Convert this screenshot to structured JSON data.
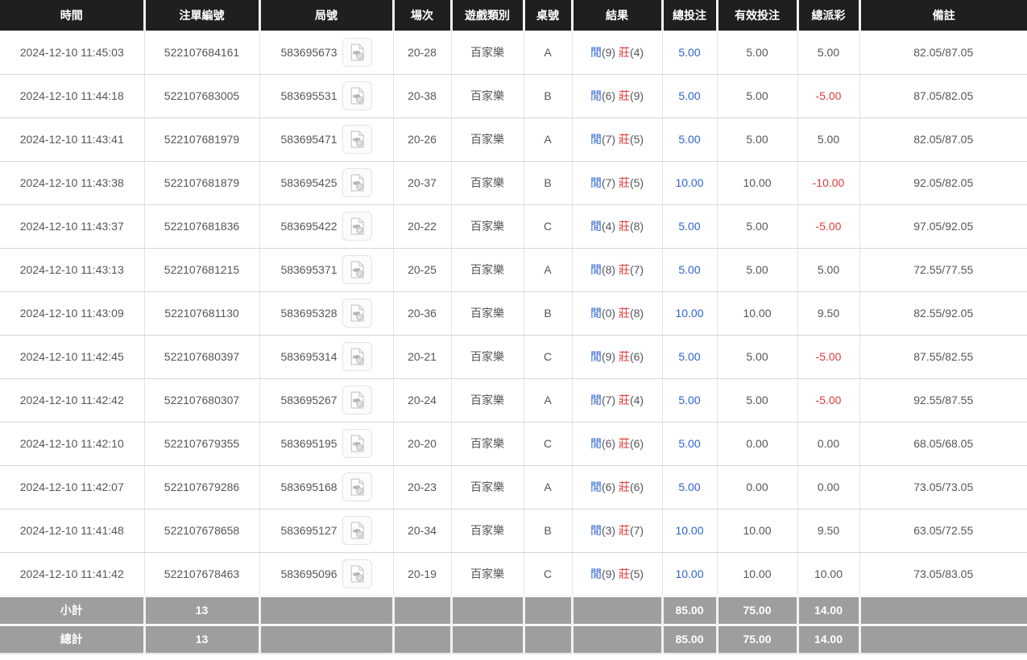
{
  "columns": [
    {
      "label": "時間"
    },
    {
      "label": "注單編號"
    },
    {
      "label": "局號"
    },
    {
      "label": "場次"
    },
    {
      "label": "遊戲類別"
    },
    {
      "label": "桌號"
    },
    {
      "label": "結果"
    },
    {
      "label": "總投注"
    },
    {
      "label": "有效投注"
    },
    {
      "label": "總派彩"
    },
    {
      "label": "備註"
    }
  ],
  "result_labels": {
    "player": "閒",
    "banker": "莊"
  },
  "icons": {
    "round_icon": "video-replay-icon"
  },
  "colors": {
    "header_bg": "#1f1f1f",
    "summary_bg": "#9e9e9e",
    "accent_blue": "#2f63cf",
    "accent_red": "#e03a3a",
    "body_text": "#54565b"
  },
  "rows": [
    {
      "time": "2024-12-10 11:45:03",
      "bet_id": "522107684161",
      "round_id": "583695673",
      "session": "20-28",
      "game_type": "百家樂",
      "table_code": "A",
      "player_score": "(9)",
      "banker_score": "(4)",
      "total_bet": "5.00",
      "valid_bet": "5.00",
      "payout": "5.00",
      "note": "82.05/87.05"
    },
    {
      "time": "2024-12-10 11:44:18",
      "bet_id": "522107683005",
      "round_id": "583695531",
      "session": "20-38",
      "game_type": "百家樂",
      "table_code": "B",
      "player_score": "(6)",
      "banker_score": "(9)",
      "total_bet": "5.00",
      "valid_bet": "5.00",
      "payout": "-5.00",
      "note": "87.05/82.05"
    },
    {
      "time": "2024-12-10 11:43:41",
      "bet_id": "522107681979",
      "round_id": "583695471",
      "session": "20-26",
      "game_type": "百家樂",
      "table_code": "A",
      "player_score": "(7)",
      "banker_score": "(5)",
      "total_bet": "5.00",
      "valid_bet": "5.00",
      "payout": "5.00",
      "note": "82.05/87.05"
    },
    {
      "time": "2024-12-10 11:43:38",
      "bet_id": "522107681879",
      "round_id": "583695425",
      "session": "20-37",
      "game_type": "百家樂",
      "table_code": "B",
      "player_score": "(7)",
      "banker_score": "(5)",
      "total_bet": "10.00",
      "valid_bet": "10.00",
      "payout": "-10.00",
      "note": "92.05/82.05"
    },
    {
      "time": "2024-12-10 11:43:37",
      "bet_id": "522107681836",
      "round_id": "583695422",
      "session": "20-22",
      "game_type": "百家樂",
      "table_code": "C",
      "player_score": "(4)",
      "banker_score": "(8)",
      "total_bet": "5.00",
      "valid_bet": "5.00",
      "payout": "-5.00",
      "note": "97.05/92.05"
    },
    {
      "time": "2024-12-10 11:43:13",
      "bet_id": "522107681215",
      "round_id": "583695371",
      "session": "20-25",
      "game_type": "百家樂",
      "table_code": "A",
      "player_score": "(8)",
      "banker_score": "(7)",
      "total_bet": "5.00",
      "valid_bet": "5.00",
      "payout": "5.00",
      "note": "72.55/77.55"
    },
    {
      "time": "2024-12-10 11:43:09",
      "bet_id": "522107681130",
      "round_id": "583695328",
      "session": "20-36",
      "game_type": "百家樂",
      "table_code": "B",
      "player_score": "(0)",
      "banker_score": "(8)",
      "total_bet": "10.00",
      "valid_bet": "10.00",
      "payout": "9.50",
      "note": "82.55/92.05"
    },
    {
      "time": "2024-12-10 11:42:45",
      "bet_id": "522107680397",
      "round_id": "583695314",
      "session": "20-21",
      "game_type": "百家樂",
      "table_code": "C",
      "player_score": "(9)",
      "banker_score": "(6)",
      "total_bet": "5.00",
      "valid_bet": "5.00",
      "payout": "-5.00",
      "note": "87.55/82.55"
    },
    {
      "time": "2024-12-10 11:42:42",
      "bet_id": "522107680307",
      "round_id": "583695267",
      "session": "20-24",
      "game_type": "百家樂",
      "table_code": "A",
      "player_score": "(7)",
      "banker_score": "(4)",
      "total_bet": "5.00",
      "valid_bet": "5.00",
      "payout": "-5.00",
      "note": "92.55/87.55"
    },
    {
      "time": "2024-12-10 11:42:10",
      "bet_id": "522107679355",
      "round_id": "583695195",
      "session": "20-20",
      "game_type": "百家樂",
      "table_code": "C",
      "player_score": "(6)",
      "banker_score": "(6)",
      "total_bet": "5.00",
      "valid_bet": "0.00",
      "payout": "0.00",
      "note": "68.05/68.05"
    },
    {
      "time": "2024-12-10 11:42:07",
      "bet_id": "522107679286",
      "round_id": "583695168",
      "session": "20-23",
      "game_type": "百家樂",
      "table_code": "A",
      "player_score": "(6)",
      "banker_score": "(6)",
      "total_bet": "5.00",
      "valid_bet": "0.00",
      "payout": "0.00",
      "note": "73.05/73.05"
    },
    {
      "time": "2024-12-10 11:41:48",
      "bet_id": "522107678658",
      "round_id": "583695127",
      "session": "20-34",
      "game_type": "百家樂",
      "table_code": "B",
      "player_score": "(3)",
      "banker_score": "(7)",
      "total_bet": "10.00",
      "valid_bet": "10.00",
      "payout": "9.50",
      "note": "63.05/72.55"
    },
    {
      "time": "2024-12-10 11:41:42",
      "bet_id": "522107678463",
      "round_id": "583695096",
      "session": "20-19",
      "game_type": "百家樂",
      "table_code": "C",
      "player_score": "(9)",
      "banker_score": "(5)",
      "total_bet": "10.00",
      "valid_bet": "10.00",
      "payout": "10.00",
      "note": "73.05/83.05"
    }
  ],
  "summary_rows": [
    {
      "label": "小計",
      "count": "13",
      "total_bet": "85.00",
      "valid_bet": "75.00",
      "payout": "14.00"
    },
    {
      "label": "總計",
      "count": "13",
      "total_bet": "85.00",
      "valid_bet": "75.00",
      "payout": "14.00"
    }
  ]
}
